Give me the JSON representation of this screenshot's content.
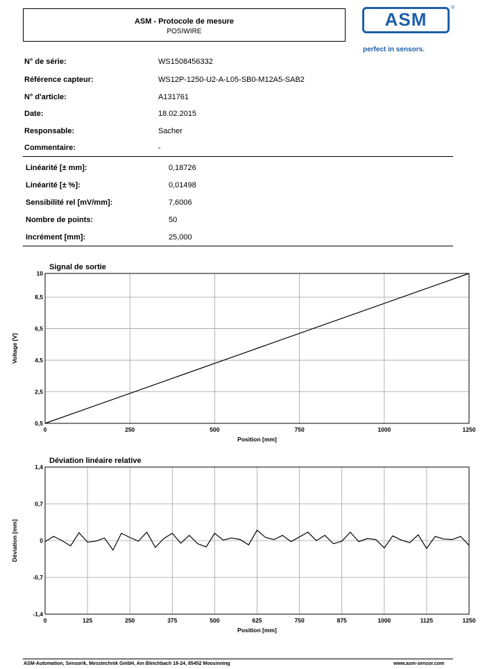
{
  "header": {
    "title": "ASM - Protocole de mesure",
    "subtitle": "POSIWIRE",
    "logo_text": "ASM",
    "logo_registered": "®",
    "tagline": "perfect in sensors.",
    "brand_color": "#1f5fa8"
  },
  "info": [
    {
      "label": "N° de série:",
      "value": "WS1508456332"
    },
    {
      "label": "Référence capteur:",
      "value": "WS12P-1250-U2-A-L05-SB0-M12A5-SAB2"
    },
    {
      "label": "N° d'article:",
      "value": "A131761"
    },
    {
      "label": "Date:",
      "value": "18.02.2015"
    },
    {
      "label": "Responsable:",
      "value": "Sacher"
    },
    {
      "label": "Commentaire:",
      "value": "-"
    }
  ],
  "stats": [
    {
      "label": "Linéarité [± mm]:",
      "value": "0,18726"
    },
    {
      "label": "Linéarité [± %]:",
      "value": "0,01498"
    },
    {
      "label": "Sensibilité rel [mV/mm]:",
      "value": "7,6006"
    },
    {
      "label": "Nombre de points:",
      "value": "50"
    },
    {
      "label": "Incrément [mm]:",
      "value": "25,000"
    }
  ],
  "chart_data": [
    {
      "type": "line",
      "title": "Signal de sortie",
      "xlabel": "Position [mm]",
      "ylabel": "Voltage [V]",
      "xlim": [
        0,
        1250
      ],
      "ylim": [
        0.5,
        10
      ],
      "x_ticks": [
        "0",
        "250",
        "500",
        "750",
        "1000",
        "1250"
      ],
      "y_ticks": [
        "10",
        "8,5",
        "6,5",
        "4,5",
        "2,5",
        "0,5"
      ],
      "grid": true,
      "series": [
        {
          "x": [
            0,
            1250
          ],
          "y": [
            0.5,
            10
          ]
        }
      ]
    },
    {
      "type": "line",
      "title": "Déviation linéaire relative",
      "xlabel": "Position [mm]",
      "ylabel": "Déviation [mm]",
      "xlim": [
        0,
        1250
      ],
      "ylim": [
        -1.4,
        1.4
      ],
      "x_ticks": [
        "0",
        "125",
        "250",
        "375",
        "500",
        "625",
        "750",
        "875",
        "1000",
        "1125",
        "1250"
      ],
      "y_ticks": [
        "1,4",
        "0,7",
        "0",
        "-0,7",
        "-1,4"
      ],
      "grid": true,
      "series": [
        {
          "x": [
            0,
            25,
            50,
            75,
            100,
            125,
            150,
            175,
            200,
            225,
            250,
            275,
            300,
            325,
            350,
            375,
            400,
            425,
            450,
            475,
            500,
            525,
            550,
            575,
            600,
            625,
            650,
            675,
            700,
            725,
            750,
            775,
            800,
            825,
            850,
            875,
            900,
            925,
            950,
            975,
            1000,
            1025,
            1050,
            1075,
            1100,
            1125,
            1150,
            1175,
            1200,
            1225,
            1250
          ],
          "y": [
            -0.02,
            0.08,
            0.0,
            -0.1,
            0.15,
            -0.03,
            -0.01,
            0.05,
            -0.18,
            0.14,
            0.06,
            -0.01,
            0.16,
            -0.13,
            0.04,
            0.14,
            -0.05,
            0.1,
            -0.06,
            -0.12,
            0.14,
            0.01,
            0.05,
            0.02,
            -0.08,
            0.2,
            0.06,
            0.02,
            0.1,
            -0.02,
            0.07,
            0.16,
            0.0,
            0.1,
            -0.06,
            -0.01,
            0.16,
            -0.02,
            0.04,
            0.02,
            -0.14,
            0.09,
            0.01,
            -0.04,
            0.11,
            -0.15,
            0.08,
            0.03,
            0.02,
            0.08,
            -0.09
          ]
        }
      ]
    }
  ],
  "footer": {
    "left": "ASM-Automation, Sensorik, Messtechnik GmbH, Am Bleichbach 18-24, 85452 Moosinning",
    "right": "www.asm-sensor.com"
  }
}
